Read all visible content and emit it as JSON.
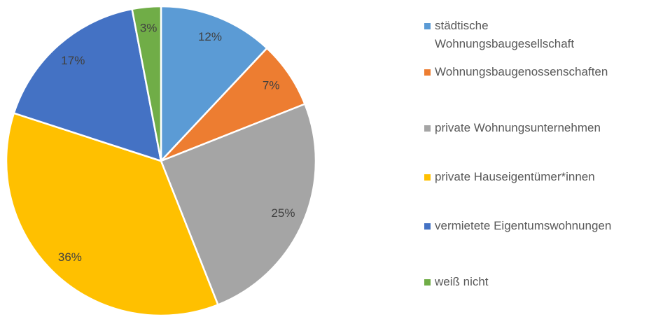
{
  "chart_data": {
    "type": "pie",
    "categories": [
      "städtische Wohnungsbaugesellschaft",
      "Wohnungsbaugenossenschaften",
      "private Wohnungsunternehmen",
      "private Hauseigentümer*innen",
      "vermietete Eigentumswohnungen",
      "weiß nicht"
    ],
    "values": [
      12,
      7,
      25,
      36,
      17,
      3
    ],
    "value_labels": [
      "12%",
      "7%",
      "25%",
      "36%",
      "17%",
      "3%"
    ],
    "colors": [
      "#5b9bd5",
      "#ed7d31",
      "#a5a5a5",
      "#ffc000",
      "#4472c4",
      "#70ad47"
    ],
    "legend": "right"
  }
}
